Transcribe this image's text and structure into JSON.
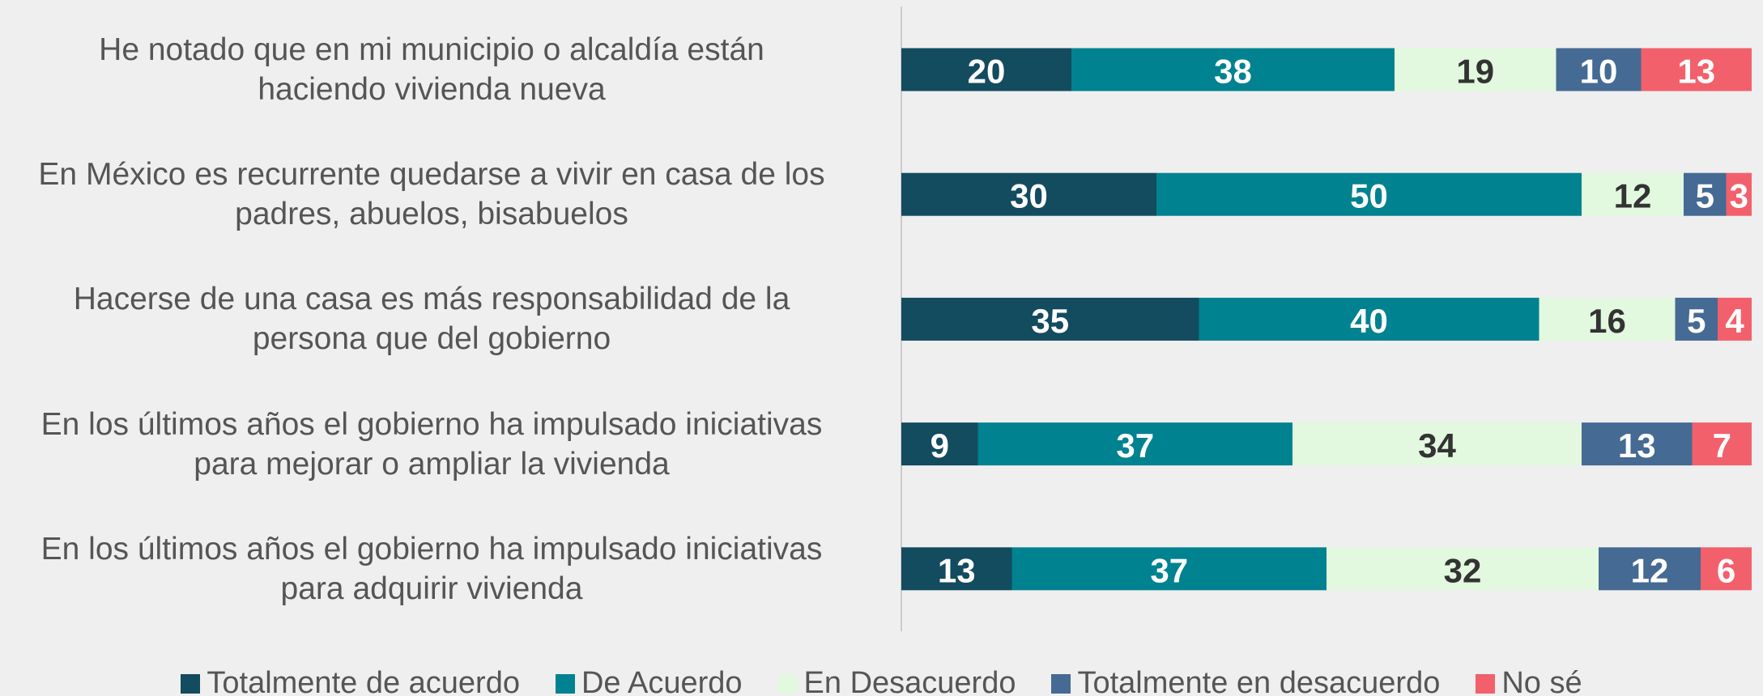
{
  "chart_data": {
    "type": "stacked_barh",
    "categories": [
      "He notado que en mi municipio o alcaldía están\nhaciendo vivienda nueva",
      "En México es recurrente quedarse a vivir en casa de los\npadres, abuelos, bisabuelos",
      "Hacerse de una casa es más responsabilidad de la\npersona que del gobierno",
      "En los últimos años el gobierno ha impulsado iniciativas\npara mejorar o ampliar la vivienda",
      "En los últimos años el gobierno ha impulsado iniciativas\npara adquirir vivienda"
    ],
    "series": [
      {
        "name": "Totalmente de acuerdo",
        "color": "#134b5f",
        "values": [
          20,
          30,
          35,
          9,
          13
        ]
      },
      {
        "name": "De Acuerdo",
        "color": "#008290",
        "values": [
          38,
          50,
          40,
          37,
          37
        ]
      },
      {
        "name": "En Desacuerdo",
        "color": "#e2f8df",
        "values": [
          19,
          12,
          16,
          34,
          32
        ]
      },
      {
        "name": "Totalmente en desacuerdo",
        "color": "#456a93",
        "values": [
          10,
          5,
          5,
          13,
          12
        ]
      },
      {
        "name": "No sé",
        "color": "#f2606c",
        "values": [
          13,
          3,
          4,
          7,
          6
        ]
      }
    ],
    "xlim": [
      0,
      100
    ],
    "legend": "bottom"
  }
}
